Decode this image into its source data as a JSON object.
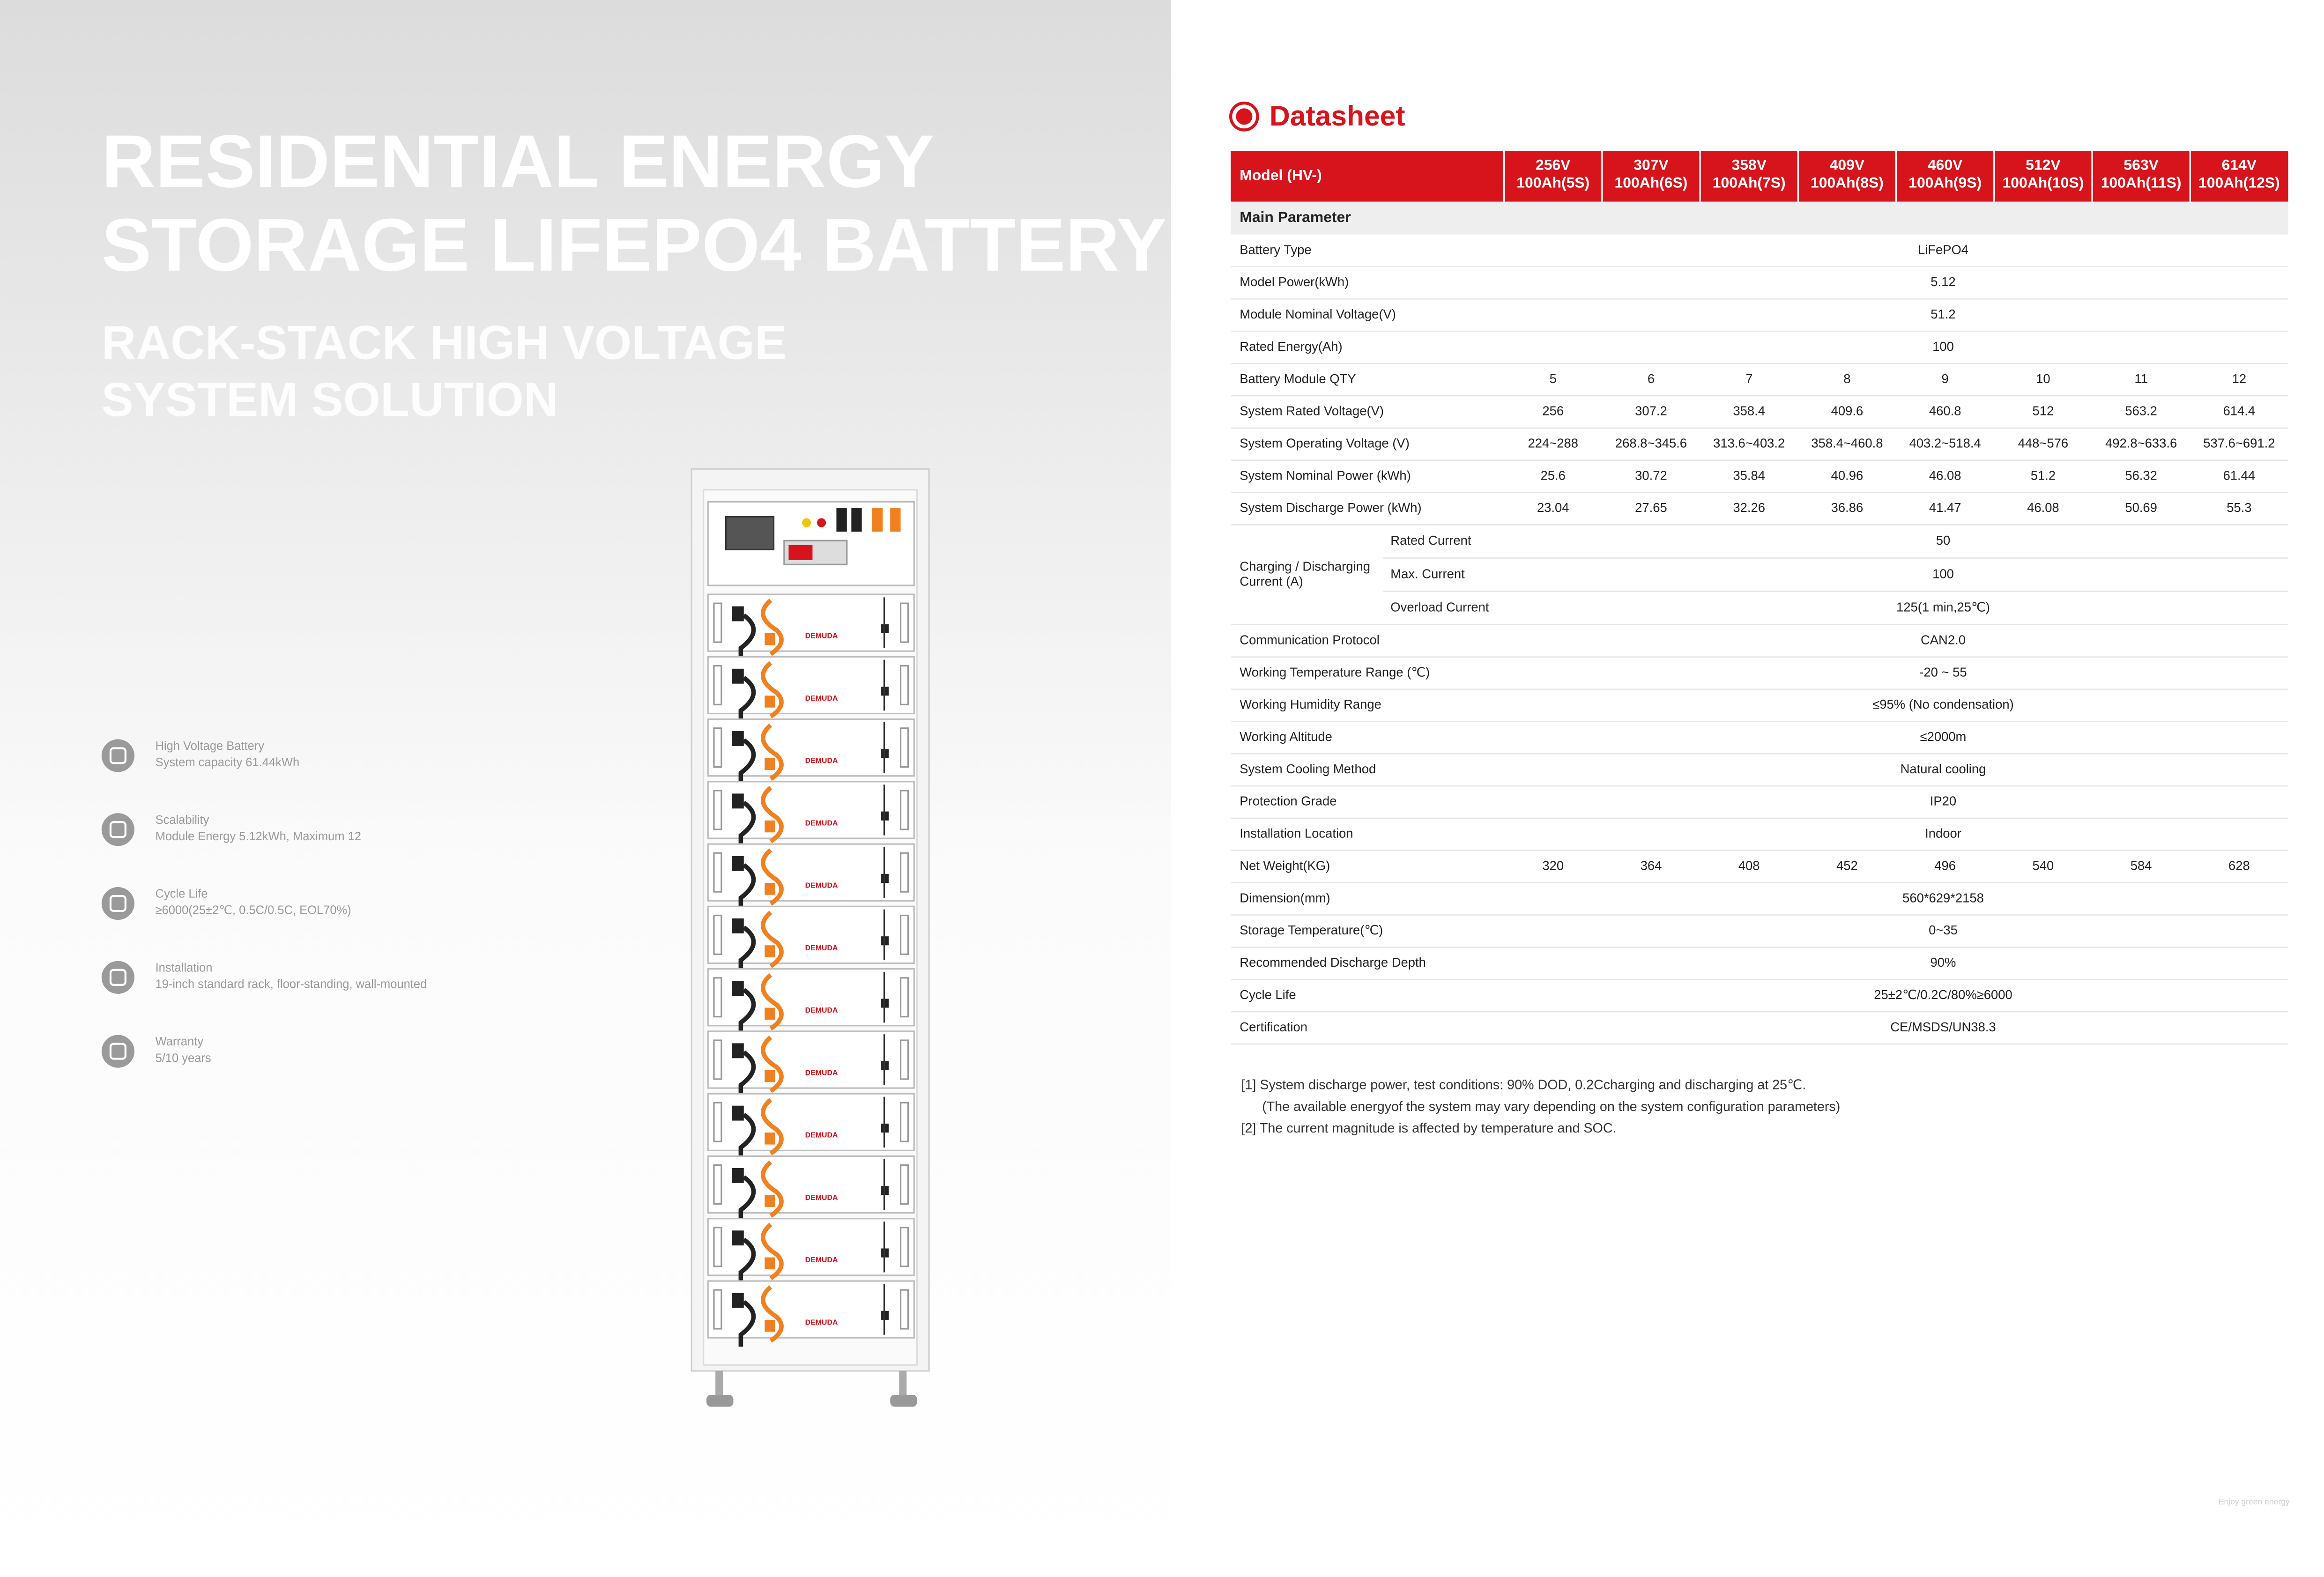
{
  "left": {
    "title": [
      "RESIDENTIAL ENERGY",
      "STORAGE LIFEPO4 BATTERY"
    ],
    "subtitle": [
      "RACK-STACK HIGH VOLTAGE",
      "SYSTEM SOLUTION"
    ],
    "brand": "DEMUDA",
    "features": [
      {
        "label": "High Voltage Battery",
        "detail": "System capacity 61.44kWh"
      },
      {
        "label": "Scalability",
        "detail": "Module Energy 5.12kWh, Maximum 12"
      },
      {
        "label": "Cycle Life",
        "detail": "≥6000(25±2℃, 0.5C/0.5C, EOL70%)"
      },
      {
        "label": "Installation",
        "detail": "19-inch standard rack, floor-standing, wall-mounted"
      },
      {
        "label": "Warranty",
        "detail": "5/10 years"
      }
    ]
  },
  "datasheet": {
    "title": "Datasheet",
    "table": {
      "header": {
        "label": "Model (HV-)",
        "columns": [
          [
            "256V",
            "100Ah(5S)"
          ],
          [
            "307V",
            "100Ah(6S)"
          ],
          [
            "358V",
            "100Ah(7S)"
          ],
          [
            "409V",
            "100Ah(8S)"
          ],
          [
            "460V",
            "100Ah(9S)"
          ],
          [
            "512V",
            "100Ah(10S)"
          ],
          [
            "563V",
            "100Ah(11S)"
          ],
          [
            "614V",
            "100Ah(12S)"
          ]
        ]
      },
      "section": "Main Parameter",
      "rows": [
        {
          "label": "Battery Type",
          "values": [
            "LiFePO4"
          ]
        },
        {
          "label": "Model Power(kWh)",
          "values": [
            "5.12"
          ]
        },
        {
          "label": "Module Nominal Voltage(V)",
          "values": [
            "51.2"
          ]
        },
        {
          "label": "Rated Energy(Ah)",
          "values": [
            "100"
          ]
        },
        {
          "label": "Battery Module QTY",
          "values": [
            "5",
            "6",
            "7",
            "8",
            "9",
            "10",
            "11",
            "12"
          ]
        },
        {
          "label": "System Rated Voltage(V)",
          "values": [
            "256",
            "307.2",
            "358.4",
            "409.6",
            "460.8",
            "512",
            "563.2",
            "614.4"
          ]
        },
        {
          "label": "System Operating Voltage (V)",
          "values": [
            "224~288",
            "268.8~345.6",
            "313.6~403.2",
            "358.4~460.8",
            "403.2~518.4",
            "448~576",
            "492.8~633.6",
            "537.6~691.2"
          ]
        },
        {
          "label": "System Nominal Power (kWh)",
          "values": [
            "25.6",
            "30.72",
            "35.84",
            "40.96",
            "46.08",
            "51.2",
            "56.32",
            "61.44"
          ]
        },
        {
          "label": "System Discharge Power (kWh)",
          "values": [
            "23.04",
            "27.65",
            "32.26",
            "36.86",
            "41.47",
            "46.08",
            "50.69",
            "55.3"
          ]
        },
        {
          "group": [
            "Charging / Discharging",
            "Current (A)"
          ],
          "label": "Rated Current",
          "values": [
            "50"
          ]
        },
        {
          "label": "Max. Current",
          "values": [
            "100"
          ]
        },
        {
          "label": "Overload Current",
          "values": [
            "125(1 min,25℃)"
          ]
        },
        {
          "label": "Communication Protocol",
          "values": [
            "CAN2.0"
          ]
        },
        {
          "label": "Working Temperature Range (℃)",
          "values": [
            "-20 ~ 55"
          ]
        },
        {
          "label": "Working Humidity Range",
          "values": [
            "≤95% (No condensation)"
          ]
        },
        {
          "label": "Working Altitude",
          "values": [
            "≤2000m"
          ]
        },
        {
          "label": "System Cooling Method",
          "values": [
            "Natural cooling"
          ]
        },
        {
          "label": "Protection Grade",
          "values": [
            "IP20"
          ]
        },
        {
          "label": "Installation Location",
          "values": [
            "Indoor"
          ]
        },
        {
          "label": "Net Weight(KG)",
          "values": [
            "320",
            "364",
            "408",
            "452",
            "496",
            "540",
            "584",
            "628"
          ]
        },
        {
          "label": "Dimension(mm)",
          "values": [
            "560*629*2158"
          ]
        },
        {
          "label": "Storage Temperature(℃)",
          "values": [
            "0~35"
          ]
        },
        {
          "label": "Recommended Discharge Depth",
          "values": [
            "90%"
          ]
        },
        {
          "label": "Cycle Life",
          "values": [
            "25±2℃/0.2C/80%≥6000"
          ]
        },
        {
          "label": "Certification",
          "values": [
            "CE/MSDS/UN38.3"
          ]
        }
      ]
    },
    "notes": [
      "[1] System discharge power, test conditions: 90% DOD, 0.2Ccharging and discharging at 25℃.",
      "(The available energyof the system may vary depending on the system configuration parameters)",
      "[2] The current magnitude is affected by temperature and SOC."
    ]
  },
  "footer": "Enjoy green energy"
}
